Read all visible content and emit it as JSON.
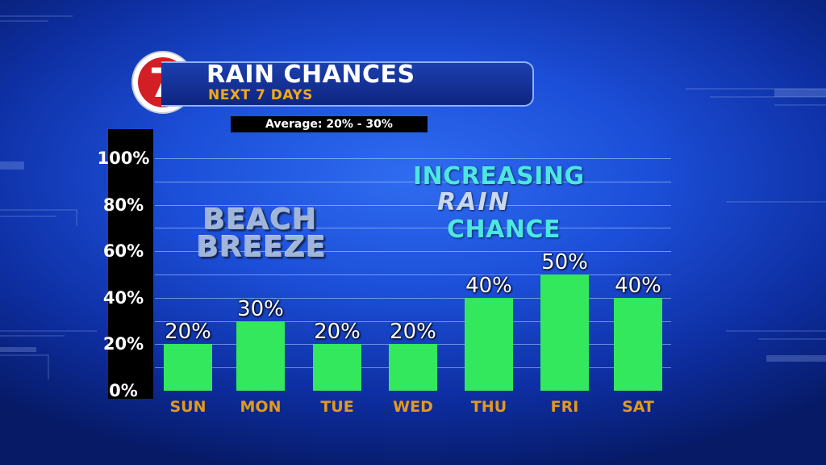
{
  "header": {
    "logo_number": "7",
    "title": "RAIN CHANCES",
    "subtitle": "NEXT 7 DAYS",
    "average_note": "Average: 20% - 30%"
  },
  "annotations": {
    "beach_line1": "BEACH",
    "beach_line2": "BREEZE",
    "increasing_line1": "INCREASING",
    "increasing_line2": "RAIN",
    "increasing_line3": "CHANCE"
  },
  "colors": {
    "bar": "#33e85c",
    "day_label": "#e29a1c",
    "subtitle": "#f2a91b",
    "logo_red": "#d21f26",
    "accent_cyan": "#4ee6e0"
  },
  "chart_data": {
    "type": "bar",
    "title": "RAIN CHANCES",
    "subtitle": "NEXT 7 DAYS",
    "categories": [
      "SUN",
      "MON",
      "TUE",
      "WED",
      "THU",
      "FRI",
      "SAT"
    ],
    "values": [
      20,
      30,
      20,
      20,
      40,
      50,
      40
    ],
    "data_labels": [
      "20%",
      "30%",
      "20%",
      "20%",
      "40%",
      "50%",
      "40%"
    ],
    "ylim": [
      0,
      100
    ],
    "yticks": [
      0,
      20,
      40,
      60,
      80,
      100
    ],
    "ytick_labels": [
      "0%",
      "20%",
      "40%",
      "60%",
      "80%",
      "100%"
    ],
    "grid": true,
    "xlabel": "",
    "ylabel": ""
  }
}
